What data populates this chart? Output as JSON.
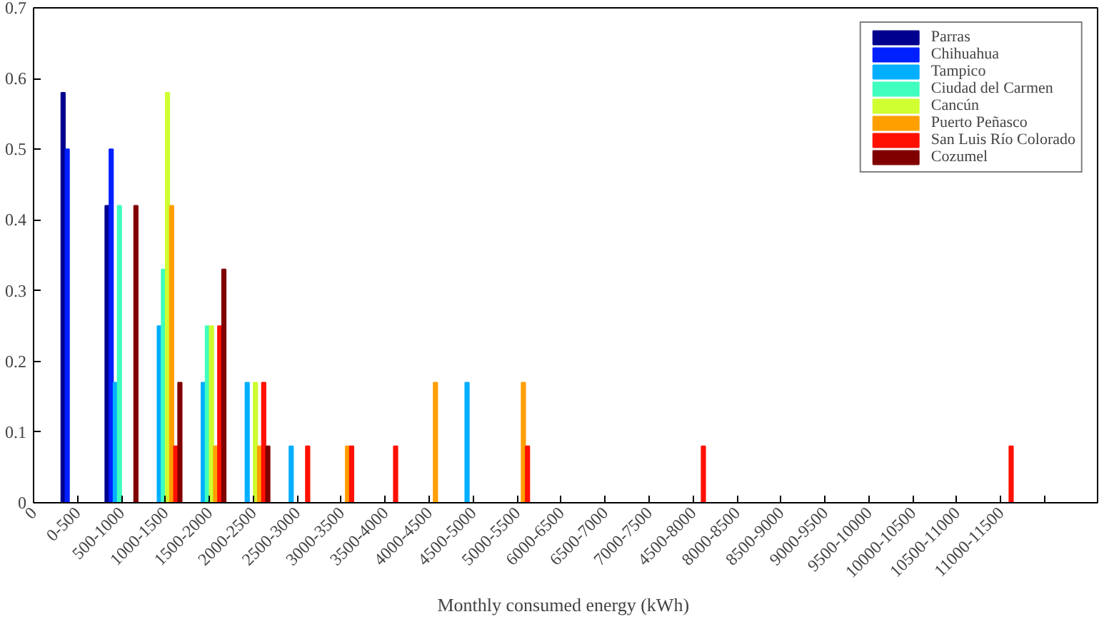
{
  "chart_data": {
    "type": "bar",
    "xlabel": "Monthly consumed energy  (kWh)",
    "categories": [
      "0",
      "0-500",
      "500-1000",
      "1000-1500",
      "1500-2000",
      "2000-2500",
      "2500-3000",
      "3000-3500",
      "3500-4000",
      "4000-4500",
      "4500-5000",
      "5000-5500",
      "6000-6500",
      "6500-7000",
      "7000-7500",
      "4500-8000",
      "8000-8500",
      "8500-9000",
      "9000-9500",
      "9500-10000",
      "10000-10500",
      "10500-11000",
      "11000-11500",
      null
    ],
    "series": [
      {
        "name": "Parras",
        "color": "#00008f",
        "values": [
          0,
          0.58,
          0.42,
          0,
          0,
          0,
          0,
          0,
          0,
          0,
          0,
          0,
          0,
          0,
          0,
          0,
          0,
          0,
          0,
          0,
          0,
          0,
          0,
          0
        ]
      },
      {
        "name": "Chihuahua",
        "color": "#0020ff",
        "values": [
          0,
          0.5,
          0.5,
          0,
          0,
          0,
          0,
          0,
          0,
          0,
          0,
          0,
          0,
          0,
          0,
          0,
          0,
          0,
          0,
          0,
          0,
          0,
          0,
          0
        ]
      },
      {
        "name": "Tampico",
        "color": "#00afff",
        "values": [
          0,
          0,
          0.17,
          0.25,
          0.17,
          0.17,
          0.08,
          0,
          0,
          0,
          0.17,
          0,
          0,
          0,
          0,
          0,
          0,
          0,
          0,
          0,
          0,
          0,
          0,
          0
        ]
      },
      {
        "name": "Ciudad del Carmen",
        "color": "#40ffbf",
        "values": [
          0,
          0,
          0.42,
          0.33,
          0.25,
          0,
          0,
          0,
          0,
          0,
          0,
          0,
          0,
          0,
          0,
          0,
          0,
          0,
          0,
          0,
          0,
          0,
          0,
          0
        ]
      },
      {
        "name": "Cancún",
        "color": "#cfff30",
        "values": [
          0,
          0,
          0,
          0.58,
          0.25,
          0.17,
          0,
          0,
          0,
          0,
          0,
          0,
          0,
          0,
          0,
          0,
          0,
          0,
          0,
          0,
          0,
          0,
          0,
          0
        ]
      },
      {
        "name": "Puerto Peñasco",
        "color": "#ff9f00",
        "values": [
          0,
          0,
          0,
          0.42,
          0.08,
          0.08,
          0,
          0.08,
          0,
          0.17,
          0,
          0.17,
          0,
          0,
          0,
          0,
          0,
          0,
          0,
          0,
          0,
          0,
          0,
          0
        ]
      },
      {
        "name": "San Luis Río Colorado",
        "color": "#ff1000",
        "values": [
          0,
          0,
          0,
          0.08,
          0.25,
          0.17,
          0.08,
          0.08,
          0.08,
          0,
          0,
          0.08,
          0,
          0,
          0,
          0.08,
          0,
          0,
          0,
          0,
          0,
          0,
          0.08,
          0
        ]
      },
      {
        "name": "Cozumel",
        "color": "#800000",
        "values": [
          0,
          0,
          0.42,
          0.17,
          0.33,
          0.08,
          0,
          0,
          0,
          0,
          0,
          0,
          0,
          0,
          0,
          0,
          0,
          0,
          0,
          0,
          0,
          0,
          0,
          0
        ]
      }
    ],
    "ylim": [
      0,
      0.7
    ],
    "yticks": [
      0,
      0.1,
      0.2,
      0.3,
      0.4,
      0.5,
      0.6,
      0.7
    ],
    "grid": false,
    "legend": "top right"
  }
}
